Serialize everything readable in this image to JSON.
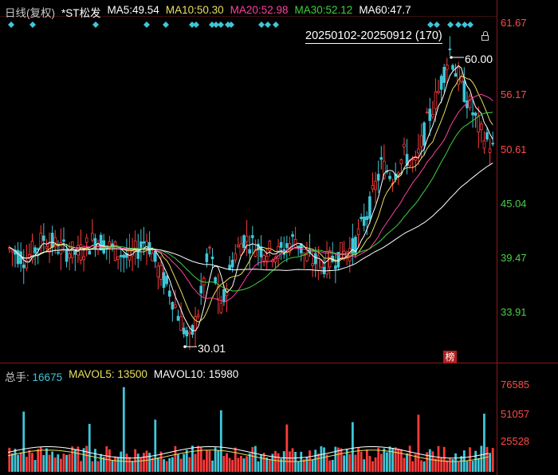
{
  "header": {
    "period": "日线(复权)",
    "name": "*ST松发",
    "ma": [
      {
        "label": "MA5:",
        "value": "49.54",
        "color": "#ffffff"
      },
      {
        "label": "MA10:",
        "value": "50.30",
        "color": "#e8e060"
      },
      {
        "label": "MA20:",
        "value": "52.98",
        "color": "#ff40a0"
      },
      {
        "label": "MA30:",
        "value": "52.12",
        "color": "#40d040"
      },
      {
        "label": "MA60:",
        "value": "47.7",
        "color": "#ffffff"
      }
    ]
  },
  "date_range": "20250102-20250912 (170)",
  "price_axis": {
    "labels": [
      "61.67",
      "56.17",
      "50.61",
      "45.04",
      "39.47",
      "33.91"
    ]
  },
  "annotations": {
    "high": "60.00",
    "low": "30.01",
    "badge": "榜"
  },
  "volume": {
    "header": [
      {
        "label": "总手:",
        "value": "16675",
        "color": "#ffffff"
      },
      {
        "label": "MAVOL5:",
        "value": "13500",
        "color": "#e8e060"
      },
      {
        "label": "MAVOL10:",
        "value": "15980",
        "color": "#ffffff"
      }
    ],
    "axis_labels": [
      "76585",
      "51057",
      "25528"
    ]
  },
  "colors": {
    "up": "#ff3b3b",
    "down": "#3fc6d8",
    "ma5": "#ffffff",
    "ma10": "#e8e060",
    "ma20": "#ff40a0",
    "ma30": "#40d040",
    "ma60": "#ffffff",
    "signal": "#c040ff"
  },
  "chart_data": {
    "type": "candlestick",
    "ylim": [
      30.01,
      61.67
    ],
    "high": 60.0,
    "low": 30.01,
    "count": 170,
    "volume_ylim": [
      0,
      76585
    ]
  }
}
